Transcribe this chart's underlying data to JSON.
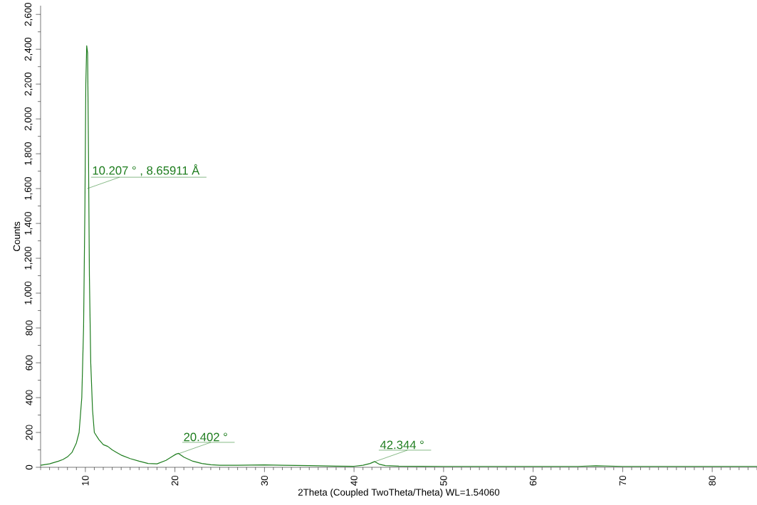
{
  "chart_data": {
    "type": "line",
    "xlabel": "2Theta (Coupled TwoTheta/Theta) WL=1.54060",
    "ylabel": "Counts",
    "color": "#1e7d1e",
    "x": [
      5,
      6,
      7,
      7.5,
      8,
      8.5,
      9,
      9.3,
      9.6,
      9.8,
      9.95,
      10.05,
      10.15,
      10.25,
      10.35,
      10.45,
      10.6,
      10.8,
      11,
      11.5,
      12,
      12.5,
      13,
      13.5,
      14,
      15,
      16,
      17,
      18,
      19,
      19.7,
      20.1,
      20.4,
      21,
      22,
      23,
      24,
      25,
      27,
      30,
      32,
      35,
      38,
      40,
      41,
      41.8,
      42.3,
      42.8,
      43.5,
      45,
      50,
      55,
      60,
      65,
      67,
      70,
      75,
      80,
      85
    ],
    "values": [
      12,
      20,
      35,
      45,
      60,
      85,
      140,
      200,
      400,
      800,
      1500,
      2200,
      2420,
      2380,
      1800,
      1100,
      600,
      330,
      200,
      160,
      130,
      120,
      100,
      85,
      70,
      50,
      35,
      22,
      20,
      40,
      62,
      75,
      80,
      58,
      35,
      22,
      15,
      12,
      12,
      14,
      12,
      10,
      7,
      6,
      12,
      22,
      33,
      18,
      10,
      7,
      5,
      5,
      5,
      5,
      9,
      5,
      5,
      5,
      5
    ],
    "annotations": [
      {
        "text": "10.207 ° , 8.65911 Å",
        "x": 10.207,
        "y": 1600
      },
      {
        "text": "20.402 °",
        "x": 20.402,
        "y": 78
      },
      {
        "text": "42.344 °",
        "x": 42.344,
        "y": 33
      }
    ],
    "xlim": [
      5,
      85
    ],
    "ylim": [
      0,
      2650
    ],
    "xticks": [
      10,
      20,
      30,
      40,
      50,
      60,
      70,
      80,
      {
        "value": 5,
        "label": null
      },
      {
        "value": 6,
        "label": null
      },
      {
        "value": 7,
        "label": null
      },
      {
        "value": 8,
        "label": null
      },
      {
        "value": 9,
        "label": null
      },
      {
        "value": 11,
        "label": null
      },
      {
        "value": 12,
        "label": null
      },
      {
        "value": 13,
        "label": null
      },
      {
        "value": 14,
        "label": null
      },
      {
        "value": 15,
        "label": null
      },
      {
        "value": 16,
        "label": null
      },
      {
        "value": 17,
        "label": null
      },
      {
        "value": 18,
        "label": null
      },
      {
        "value": 19,
        "label": null
      },
      {
        "value": 21,
        "label": null
      },
      {
        "value": 22,
        "label": null
      },
      {
        "value": 23,
        "label": null
      },
      {
        "value": 24,
        "label": null
      },
      {
        "value": 25,
        "label": null
      },
      {
        "value": 26,
        "label": null
      },
      {
        "value": 27,
        "label": null
      },
      {
        "value": 28,
        "label": null
      },
      {
        "value": 29,
        "label": null
      },
      {
        "value": 31,
        "label": null
      },
      {
        "value": 32,
        "label": null
      },
      {
        "value": 33,
        "label": null
      },
      {
        "value": 34,
        "label": null
      },
      {
        "value": 35,
        "label": null
      },
      {
        "value": 36,
        "label": null
      },
      {
        "value": 37,
        "label": null
      },
      {
        "value": 38,
        "label": null
      },
      {
        "value": 39,
        "label": null
      },
      {
        "value": 41,
        "label": null
      },
      {
        "value": 42,
        "label": null
      },
      {
        "value": 43,
        "label": null
      },
      {
        "value": 44,
        "label": null
      },
      {
        "value": 45,
        "label": null
      },
      {
        "value": 46,
        "label": null
      },
      {
        "value": 47,
        "label": null
      },
      {
        "value": 48,
        "label": null
      },
      {
        "value": 49,
        "label": null
      },
      {
        "value": 51,
        "label": null
      },
      {
        "value": 52,
        "label": null
      },
      {
        "value": 53,
        "label": null
      },
      {
        "value": 54,
        "label": null
      },
      {
        "value": 55,
        "label": null
      },
      {
        "value": 56,
        "label": null
      },
      {
        "value": 57,
        "label": null
      },
      {
        "value": 58,
        "label": null
      },
      {
        "value": 59,
        "label": null
      },
      {
        "value": 61,
        "label": null
      },
      {
        "value": 62,
        "label": null
      },
      {
        "value": 63,
        "label": null
      },
      {
        "value": 64,
        "label": null
      },
      {
        "value": 65,
        "label": null
      },
      {
        "value": 66,
        "label": null
      },
      {
        "value": 67,
        "label": null
      },
      {
        "value": 68,
        "label": null
      },
      {
        "value": 69,
        "label": null
      },
      {
        "value": 71,
        "label": null
      },
      {
        "value": 72,
        "label": null
      },
      {
        "value": 73,
        "label": null
      },
      {
        "value": 74,
        "label": null
      },
      {
        "value": 75,
        "label": null
      },
      {
        "value": 76,
        "label": null
      },
      {
        "value": 77,
        "label": null
      },
      {
        "value": 78,
        "label": null
      },
      {
        "value": 79,
        "label": null
      },
      {
        "value": 81,
        "label": null
      },
      {
        "value": 82,
        "label": null
      },
      {
        "value": 83,
        "label": null
      },
      {
        "value": 84,
        "label": null
      },
      {
        "value": 85,
        "label": null
      }
    ],
    "yticks": [
      0,
      200,
      400,
      600,
      800,
      {
        "value": 1000,
        "label": "1,000"
      },
      {
        "value": 1200,
        "label": "1,200"
      },
      {
        "value": 1400,
        "label": "1,400"
      },
      {
        "value": 1600,
        "label": "1,600"
      },
      {
        "value": 1800,
        "label": "1,800"
      },
      {
        "value": 2000,
        "label": "2,000"
      },
      {
        "value": 2200,
        "label": "2,200"
      },
      {
        "value": 2400,
        "label": "2,400"
      },
      {
        "value": 2600,
        "label": "2,600"
      },
      {
        "value": 100,
        "label": null
      },
      {
        "value": 300,
        "label": null
      },
      {
        "value": 500,
        "label": null
      },
      {
        "value": 700,
        "label": null
      },
      {
        "value": 900,
        "label": null
      },
      {
        "value": 1100,
        "label": null
      },
      {
        "value": 1300,
        "label": null
      },
      {
        "value": 1500,
        "label": null
      },
      {
        "value": 1700,
        "label": null
      },
      {
        "value": 1900,
        "label": null
      },
      {
        "value": 2100,
        "label": null
      },
      {
        "value": 2300,
        "label": null
      },
      {
        "value": 2500,
        "label": null
      }
    ]
  }
}
